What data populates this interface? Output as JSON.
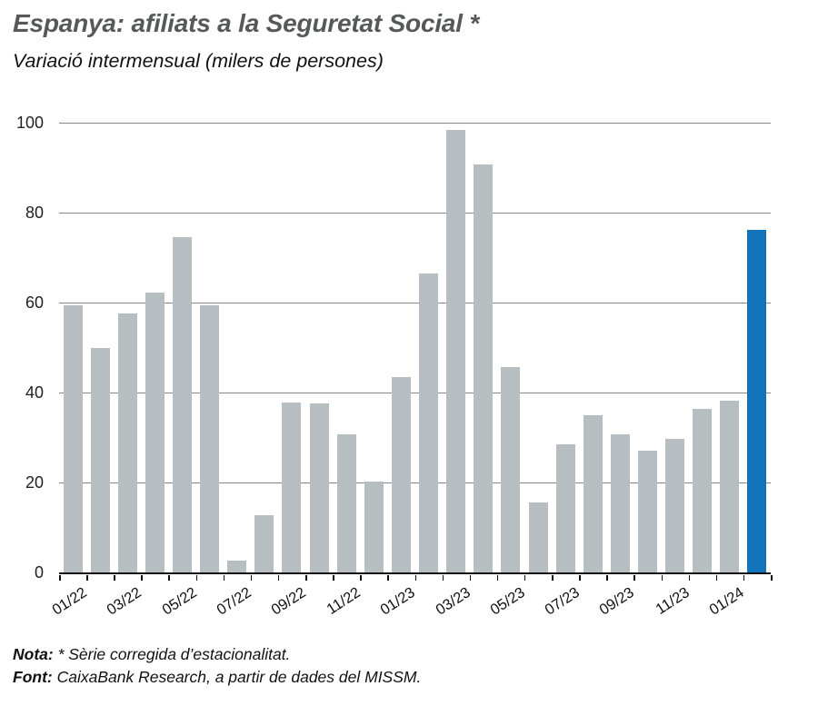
{
  "header": {
    "title": "Espanya: afiliats a la Seguretat Social *",
    "subtitle": "Variació intermensual (milers de persones)"
  },
  "chart_data": {
    "type": "bar",
    "title": "Espanya: afiliats a la Seguretat Social *",
    "subtitle": "Variació intermensual (milers de persones)",
    "xlabel": "",
    "ylabel": "milers de persones",
    "ylim": [
      0,
      100
    ],
    "yticks": [
      0,
      20,
      40,
      60,
      80,
      100
    ],
    "grid": true,
    "legend_position": "none",
    "categories": [
      "01/22",
      "02/22",
      "03/22",
      "04/22",
      "05/22",
      "06/22",
      "07/22",
      "08/22",
      "09/22",
      "10/22",
      "11/22",
      "12/22",
      "01/23",
      "02/23",
      "03/23",
      "04/23",
      "05/23",
      "06/23",
      "07/23",
      "08/23",
      "09/23",
      "10/23",
      "11/23",
      "12/23",
      "01/24",
      "02/24"
    ],
    "values": [
      59.3,
      49.9,
      57.6,
      62.2,
      74.5,
      59.4,
      2.6,
      12.7,
      37.7,
      37.6,
      30.7,
      20.3,
      43.5,
      66.5,
      98.4,
      90.7,
      45.7,
      15.6,
      28.5,
      34.9,
      30.7,
      27.1,
      29.8,
      36.4,
      38.2,
      76.2
    ],
    "xtick_labels": [
      "01/22",
      "03/22",
      "05/22",
      "07/22",
      "09/22",
      "11/22",
      "01/23",
      "03/23",
      "05/23",
      "07/23",
      "09/23",
      "11/23",
      "01/24"
    ],
    "xtick_every": 2,
    "bar_color": "#b6bec2",
    "highlight_color": "#1173b9",
    "highlight_index": 25
  },
  "footer": {
    "note_label": "Nota:",
    "note_text": " * Sèrie corregida d’estacionalitat.",
    "source_label": "Font:",
    "source_text": " CaixaBank Research, a partir de dades del MISSM."
  }
}
